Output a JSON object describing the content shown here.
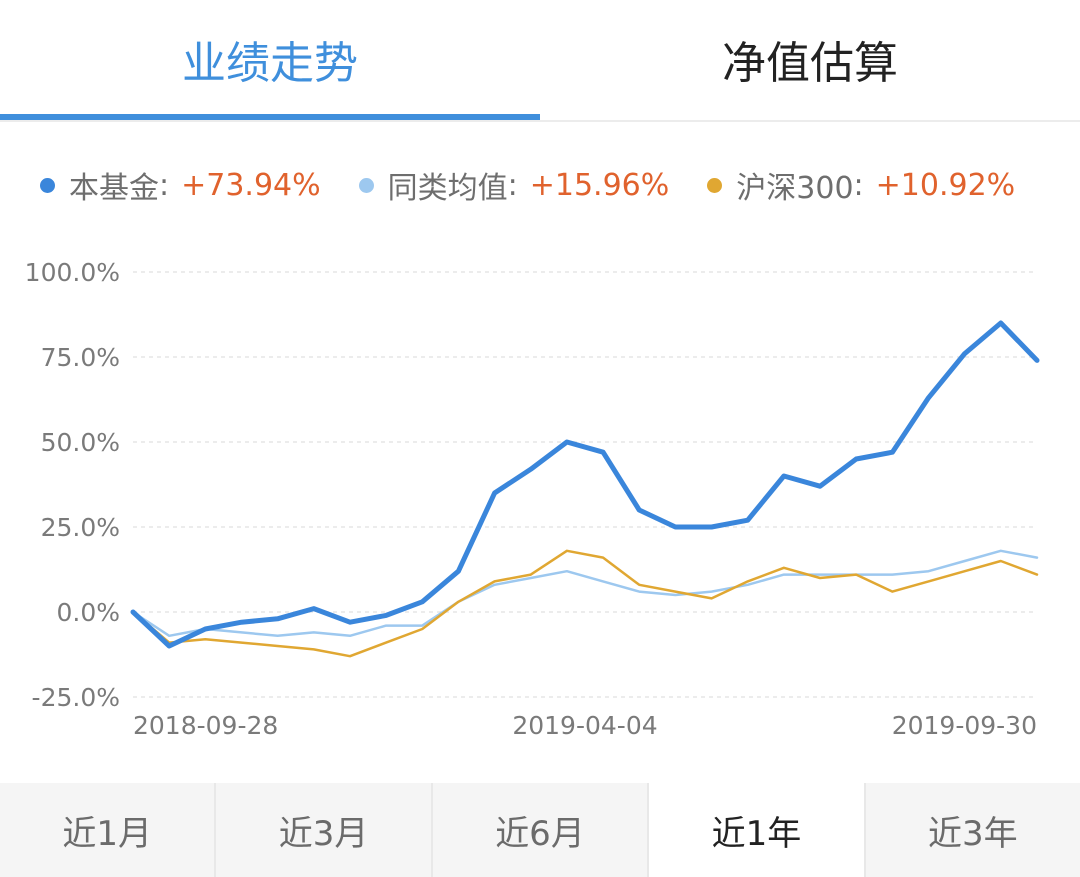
{
  "tabs": [
    {
      "label": "业绩走势",
      "active": true
    },
    {
      "label": "净值估算",
      "active": false
    }
  ],
  "legend": [
    {
      "name": "本基金",
      "value": "+73.94%",
      "color": "#3a86db"
    },
    {
      "name": "同类均值",
      "value": "+15.96%",
      "color": "#9dc8ef"
    },
    {
      "name": "沪深300",
      "value": "+10.92%",
      "color": "#e0a732"
    }
  ],
  "periods": [
    "近1月",
    "近3月",
    "近6月",
    "近1年",
    "近3年"
  ],
  "active_period": "近1年",
  "chart_data": {
    "type": "line",
    "y_ticks": [
      "100.0%",
      "75.0%",
      "50.0%",
      "25.0%",
      "0.0%",
      "-25.0%"
    ],
    "ylim": [
      -25,
      100
    ],
    "x_tick_labels": [
      "2018-09-28",
      "2019-04-04",
      "2019-09-30"
    ],
    "grid": true,
    "x_index": [
      0,
      4,
      8,
      12,
      16,
      20,
      24,
      28,
      32,
      36,
      40,
      44,
      48,
      52,
      56,
      60,
      64,
      68,
      72,
      76,
      80,
      84,
      88,
      92,
      96,
      100
    ],
    "series": [
      {
        "name": "本基金",
        "color": "#3a86db",
        "values": [
          0,
          -10,
          -5,
          -3,
          -2,
          1,
          -3,
          -1,
          3,
          12,
          35,
          42,
          50,
          47,
          30,
          25,
          25,
          27,
          40,
          37,
          45,
          47,
          63,
          76,
          85,
          74
        ]
      },
      {
        "name": "同类均值",
        "color": "#9dc8ef",
        "values": [
          0,
          -7,
          -5,
          -6,
          -7,
          -6,
          -7,
          -4,
          -4,
          3,
          8,
          10,
          12,
          9,
          6,
          5,
          6,
          8,
          11,
          11,
          11,
          11,
          12,
          15,
          18,
          16
        ]
      },
      {
        "name": "沪深300",
        "color": "#e0a732",
        "values": [
          0,
          -9,
          -8,
          -9,
          -10,
          -11,
          -13,
          -9,
          -5,
          3,
          9,
          11,
          18,
          16,
          8,
          6,
          4,
          9,
          13,
          10,
          11,
          6,
          9,
          12,
          15,
          11
        ]
      }
    ]
  }
}
